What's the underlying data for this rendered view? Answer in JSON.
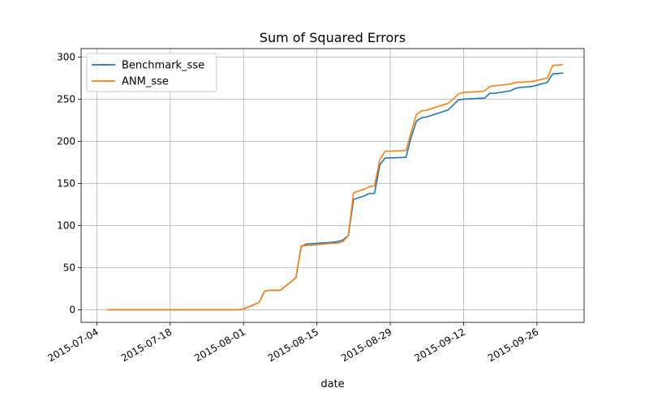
{
  "chart_data": {
    "type": "line",
    "title": "Sum of Squared Errors",
    "xlabel": "date",
    "ylabel": "",
    "xlim": [
      "2015-07-01",
      "2015-10-05"
    ],
    "ylim": [
      -15,
      310
    ],
    "grid": true,
    "legend_position": "top-left",
    "x_ticks": [
      "2015-07-04",
      "2015-07-18",
      "2015-08-01",
      "2015-08-15",
      "2015-08-29",
      "2015-09-12",
      "2015-09-26"
    ],
    "y_ticks": [
      0,
      50,
      100,
      150,
      200,
      250,
      300
    ],
    "series": [
      {
        "name": "Benchmark_sse",
        "color": "#1f77b4",
        "points": [
          [
            "2015-07-06",
            0
          ],
          [
            "2015-07-15",
            0
          ],
          [
            "2015-07-25",
            0
          ],
          [
            "2015-07-31",
            0
          ],
          [
            "2015-08-01",
            1
          ],
          [
            "2015-08-03",
            6
          ],
          [
            "2015-08-04",
            9
          ],
          [
            "2015-08-05",
            22
          ],
          [
            "2015-08-06",
            23
          ],
          [
            "2015-08-08",
            23
          ],
          [
            "2015-08-11",
            38
          ],
          [
            "2015-08-12",
            75
          ],
          [
            "2015-08-13",
            78
          ],
          [
            "2015-08-18",
            80
          ],
          [
            "2015-08-19",
            81
          ],
          [
            "2015-08-20",
            83
          ],
          [
            "2015-08-21",
            88
          ],
          [
            "2015-08-22",
            131
          ],
          [
            "2015-08-24",
            135
          ],
          [
            "2015-08-25",
            138
          ],
          [
            "2015-08-26",
            138
          ],
          [
            "2015-08-27",
            172
          ],
          [
            "2015-08-28",
            180
          ],
          [
            "2015-09-01",
            181
          ],
          [
            "2015-09-02",
            205
          ],
          [
            "2015-09-03",
            224
          ],
          [
            "2015-09-04",
            228
          ],
          [
            "2015-09-05",
            229
          ],
          [
            "2015-09-09",
            237
          ],
          [
            "2015-09-10",
            243
          ],
          [
            "2015-09-11",
            249
          ],
          [
            "2015-09-12",
            250
          ],
          [
            "2015-09-15",
            251
          ],
          [
            "2015-09-16",
            251
          ],
          [
            "2015-09-17",
            257
          ],
          [
            "2015-09-18",
            257
          ],
          [
            "2015-09-21",
            260
          ],
          [
            "2015-09-22",
            263
          ],
          [
            "2015-09-23",
            264
          ],
          [
            "2015-09-25",
            265
          ],
          [
            "2015-09-28",
            270
          ],
          [
            "2015-09-29",
            280
          ],
          [
            "2015-10-01",
            281
          ]
        ]
      },
      {
        "name": "ANM_sse",
        "color": "#ff7f0e",
        "points": [
          [
            "2015-07-06",
            0
          ],
          [
            "2015-07-15",
            0
          ],
          [
            "2015-07-25",
            0
          ],
          [
            "2015-07-31",
            0
          ],
          [
            "2015-08-01",
            1
          ],
          [
            "2015-08-03",
            6
          ],
          [
            "2015-08-04",
            9
          ],
          [
            "2015-08-05",
            22
          ],
          [
            "2015-08-06",
            23
          ],
          [
            "2015-08-08",
            23
          ],
          [
            "2015-08-11",
            38
          ],
          [
            "2015-08-12",
            76
          ],
          [
            "2015-08-13",
            76
          ],
          [
            "2015-08-18",
            79
          ],
          [
            "2015-08-19",
            79
          ],
          [
            "2015-08-20",
            81
          ],
          [
            "2015-08-21",
            88
          ],
          [
            "2015-08-22",
            139
          ],
          [
            "2015-08-24",
            143
          ],
          [
            "2015-08-25",
            146
          ],
          [
            "2015-08-26",
            147
          ],
          [
            "2015-08-27",
            178
          ],
          [
            "2015-08-28",
            188
          ],
          [
            "2015-09-01",
            189
          ],
          [
            "2015-09-02",
            211
          ],
          [
            "2015-09-03",
            232
          ],
          [
            "2015-09-04",
            236
          ],
          [
            "2015-09-05",
            237
          ],
          [
            "2015-09-09",
            245
          ],
          [
            "2015-09-10",
            250
          ],
          [
            "2015-09-11",
            256
          ],
          [
            "2015-09-12",
            258
          ],
          [
            "2015-09-15",
            259
          ],
          [
            "2015-09-16",
            260
          ],
          [
            "2015-09-17",
            265
          ],
          [
            "2015-09-18",
            266
          ],
          [
            "2015-09-21",
            268
          ],
          [
            "2015-09-22",
            270
          ],
          [
            "2015-09-23",
            270
          ],
          [
            "2015-09-25",
            271
          ],
          [
            "2015-09-28",
            275
          ],
          [
            "2015-09-29",
            290
          ],
          [
            "2015-10-01",
            291
          ]
        ]
      }
    ]
  }
}
